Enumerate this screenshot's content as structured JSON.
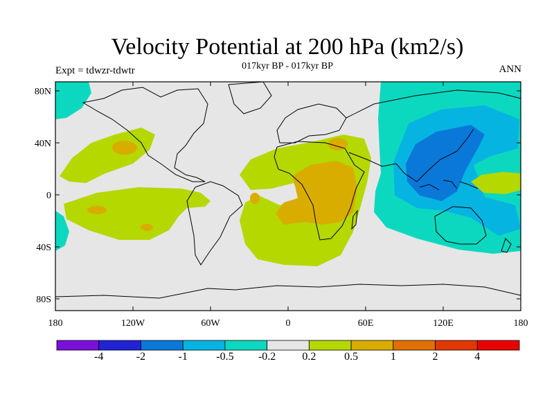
{
  "header": {
    "title": "Velocity Potential at 200 hPa (km2/s)",
    "subtitle": "017kyr BP - 017kyr BP",
    "experiment": "Expt = tdwzr-tdwtr",
    "period": "ANN"
  },
  "axes": {
    "lat_ticks": [
      "80N",
      "40N",
      "0",
      "40S",
      "80S"
    ],
    "lon_ticks": [
      "180",
      "120W",
      "60W",
      "0",
      "60E",
      "120E",
      "180"
    ]
  },
  "colorbar": {
    "labels": [
      "-4",
      "-2",
      "-1",
      "-0.5",
      "-0.2",
      "0.2",
      "0.5",
      "1",
      "2",
      "4"
    ],
    "colors": [
      "#7a10d8",
      "#2222d6",
      "#0a78d8",
      "#06b4e2",
      "#0cd8c0",
      "#e6e6e6",
      "#b4d800",
      "#d9ac00",
      "#e07000",
      "#e03800",
      "#e80000"
    ]
  },
  "colors": {
    "background": "#e6e6e6",
    "pos_weak": "#b4d800",
    "pos_mid": "#d9ac00",
    "neg_weak": "#0cd8c0",
    "neg_mid": "#06b4e2",
    "neg_strong": "#0a78d8"
  }
}
